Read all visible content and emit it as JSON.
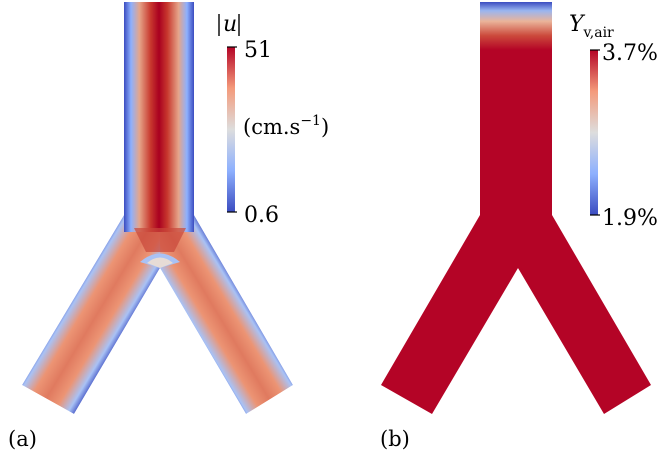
{
  "panel_a": {
    "label": "(a)",
    "colorbar": {
      "title_var": "u",
      "max_label": "51",
      "min_label": "0.6",
      "unit_main": "(cm.s",
      "unit_exp": "−1",
      "unit_close": ")",
      "colormap": [
        "#3b4cc0",
        "#8db0fe",
        "#dddddd",
        "#f49a7b",
        "#b40426"
      ]
    }
  },
  "panel_b": {
    "label": "(b)",
    "colorbar": {
      "title_var": "Y",
      "title_sub": "v,air",
      "max_label": "3.7%",
      "min_label": "1.9%",
      "colormap": [
        "#3b4cc0",
        "#8db0fe",
        "#dddddd",
        "#f49a7b",
        "#b40426"
      ]
    },
    "fill_color": "#b40426"
  }
}
